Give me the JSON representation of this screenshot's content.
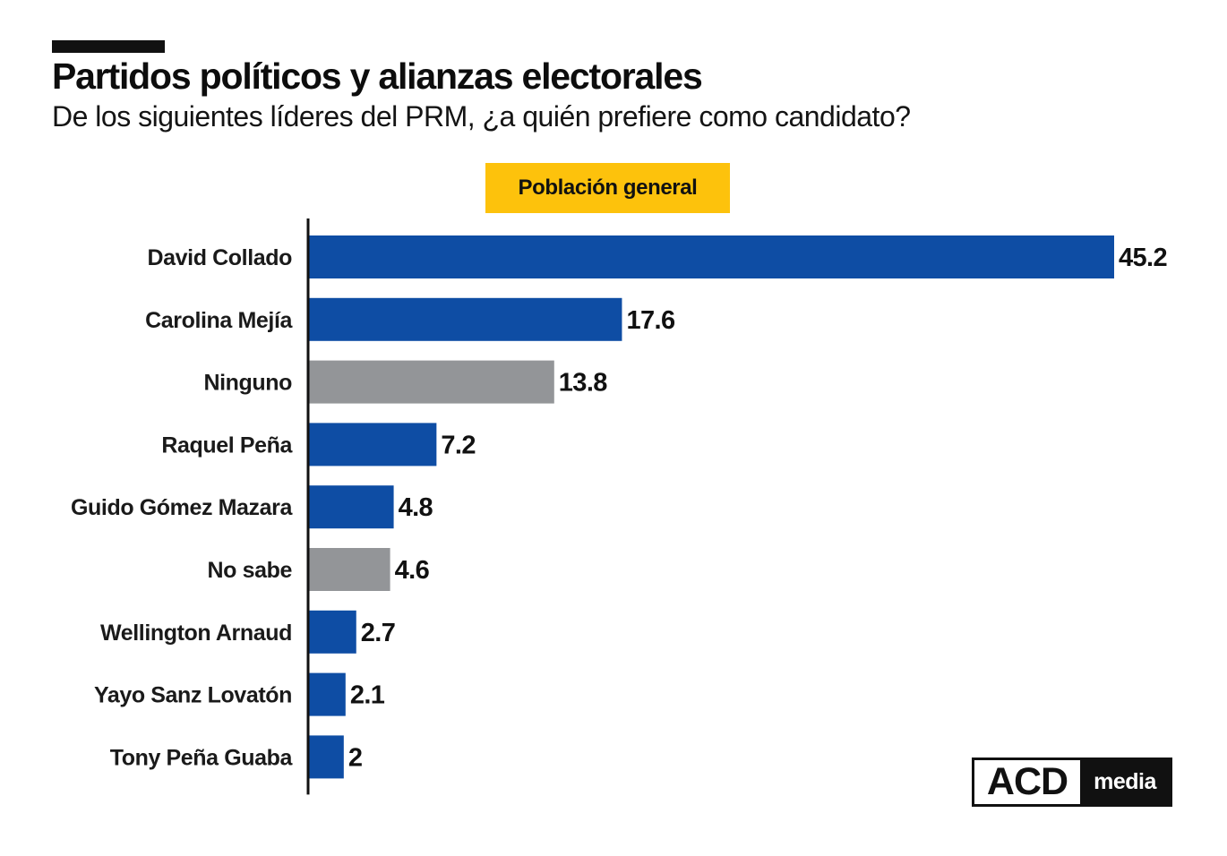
{
  "header": {
    "title": "Partidos políticos y alianzas electorales",
    "subtitle": "De los siguientes líderes del PRM, ¿a quién prefiere como candidato?"
  },
  "segment": {
    "label": "Población general",
    "color": "#FDC20C"
  },
  "colors": {
    "candidate": "#0E4DA4",
    "other": "#939598",
    "axis": "#111111",
    "accent": "#111111"
  },
  "chart_data": {
    "type": "bar",
    "orientation": "horizontal",
    "title": "",
    "xlabel": "",
    "ylabel": "",
    "categories": [
      "David Collado",
      "Carolina Mejía",
      "Ninguno",
      "Raquel Peña",
      "Guido Gómez Mazara",
      "No sabe",
      "Wellington Arnaud",
      "Yayo Sanz Lovatón",
      "Tony Peña Guaba"
    ],
    "values": [
      45.2,
      17.6,
      13.8,
      7.2,
      4.8,
      4.6,
      2.7,
      2.1,
      2
    ],
    "value_labels": [
      "45.2",
      "17.6",
      "13.8",
      "7.2",
      "4.8",
      "4.6",
      "2.7",
      "2.1",
      "2"
    ],
    "bar_groups": [
      "candidate",
      "candidate",
      "other",
      "candidate",
      "candidate",
      "other",
      "candidate",
      "candidate",
      "candidate"
    ],
    "xlim": [
      0,
      45.2
    ],
    "grid": false,
    "legend": "none"
  },
  "logo": {
    "primary": "ACD",
    "secondary": "media"
  }
}
